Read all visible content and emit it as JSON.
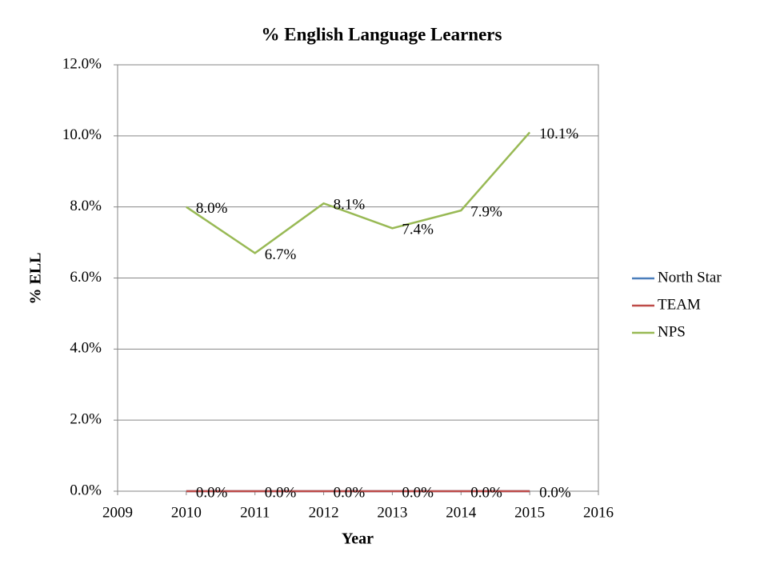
{
  "chart_data": {
    "type": "line",
    "title": "% English Language Learners",
    "x_label": "Year",
    "y_label": "% ELL",
    "x": [
      2010,
      2011,
      2012,
      2013,
      2014,
      2015
    ],
    "series": [
      {
        "name": "North Star",
        "color": "#4a7ebb",
        "values": [
          0,
          0,
          0,
          0,
          0,
          0
        ]
      },
      {
        "name": "TEAM",
        "color": "#be4b48",
        "values": [
          0,
          0,
          0,
          0,
          0,
          0
        ],
        "value_labels": [
          "0.0%",
          "0.0%",
          "0.0%",
          "0.0%",
          "0.0%",
          "0.0%"
        ]
      },
      {
        "name": "NPS",
        "color": "#98b954",
        "values": [
          8.0,
          6.7,
          8.1,
          7.4,
          7.9,
          10.1
        ],
        "value_labels": [
          "8.0%",
          "6.7%",
          "8.1%",
          "7.4%",
          "7.9%",
          "10.1%"
        ]
      }
    ],
    "xlim": [
      2009,
      2016
    ],
    "xticks": [
      2009,
      2010,
      2011,
      2012,
      2013,
      2014,
      2015,
      2016
    ],
    "ylim": [
      0,
      12
    ],
    "yticks": [
      {
        "value": 0,
        "label": "0.0%"
      },
      {
        "value": 2,
        "label": "2.0%"
      },
      {
        "value": 4,
        "label": "4.0%"
      },
      {
        "value": 6,
        "label": "6.0%"
      },
      {
        "value": 8,
        "label": "8.0%"
      },
      {
        "value": 10,
        "label": "10.0%"
      },
      {
        "value": 12,
        "label": "12.0%"
      }
    ],
    "grid": true,
    "legend": "right"
  }
}
